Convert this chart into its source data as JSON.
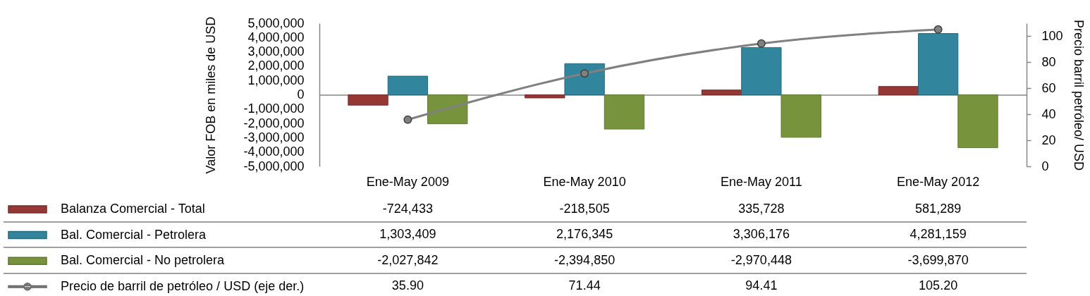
{
  "chart_data": {
    "type": "bar",
    "categories": [
      "Ene-May 2009",
      "Ene-May 2010",
      "Ene-May 2011",
      "Ene-May 2012"
    ],
    "series": [
      {
        "name": "Balanza Comercial - Total",
        "color": "#953735",
        "values": [
          -724433,
          -218505,
          335728,
          581289
        ],
        "value_labels": [
          "-724,433",
          "-218,505",
          "335,728",
          "581,289"
        ]
      },
      {
        "name": "Bal. Comercial - Petrolera",
        "color": "#31859c",
        "values": [
          1303409,
          2176345,
          3306176,
          4281159
        ],
        "value_labels": [
          "1,303,409",
          "2,176,345",
          "3,306,176",
          "4,281,159"
        ]
      },
      {
        "name": "Bal. Comercial - No petrolera",
        "color": "#77933c",
        "values": [
          -2027842,
          -2394850,
          -2970448,
          -3699870
        ],
        "value_labels": [
          "-2,027,842",
          "-2,394,850",
          "-2,970,448",
          "-3,699,870"
        ]
      },
      {
        "name": "Precio de barril de petróleo / USD (eje der.)",
        "type": "line",
        "axis": "y2",
        "color": "#808080",
        "values": [
          35.9,
          71.44,
          94.41,
          105.2
        ],
        "value_labels": [
          "35.90",
          "71.44",
          "94.41",
          "105.20"
        ]
      }
    ],
    "ylabel": "Valor FOB en miles de USD",
    "y2label": "Precio barril petróleo/ USD",
    "ylim": [
      -5000000,
      5000000
    ],
    "yticks": [
      {
        "value": -5000000,
        "label": "-5,000,000"
      },
      {
        "value": -4000000,
        "label": "-4,000,000"
      },
      {
        "value": -3000000,
        "label": "-3,000,000"
      },
      {
        "value": -2000000,
        "label": "-2,000,000"
      },
      {
        "value": -1000000,
        "label": "-1,000,000"
      },
      0,
      {
        "value": 1000000,
        "label": "1,000,000"
      },
      {
        "value": 2000000,
        "label": "2,000,000"
      },
      {
        "value": 3000000,
        "label": "3,000,000"
      },
      {
        "value": 4000000,
        "label": "4,000,000"
      },
      {
        "value": 5000000,
        "label": "5,000,000"
      }
    ],
    "y2lim": [
      0,
      110
    ],
    "y2ticks": [
      0,
      20,
      40,
      60,
      80,
      100
    ],
    "legend": "bottom left",
    "marker": "circle"
  }
}
